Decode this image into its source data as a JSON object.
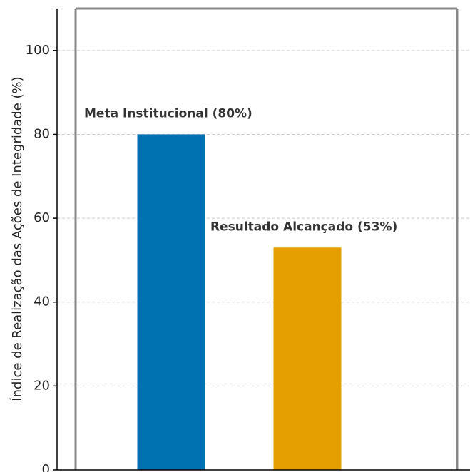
{
  "chart_data": {
    "type": "bar",
    "title": "",
    "xlabel": "",
    "ylabel": "Índice de Realização das Ações de Integridade (%)",
    "ylim": [
      0,
      110
    ],
    "yticks": [
      0,
      20,
      40,
      60,
      80,
      100
    ],
    "grid": true,
    "legend": "none",
    "categories": [
      "Meta Institucional",
      "Resultado Alcançado"
    ],
    "values": [
      80,
      53
    ],
    "data_labels": [
      "Meta Institucional (80%)",
      "Resultado Alcançado (53%)"
    ],
    "colors": [
      "#0072B2",
      "#E69F00"
    ]
  }
}
